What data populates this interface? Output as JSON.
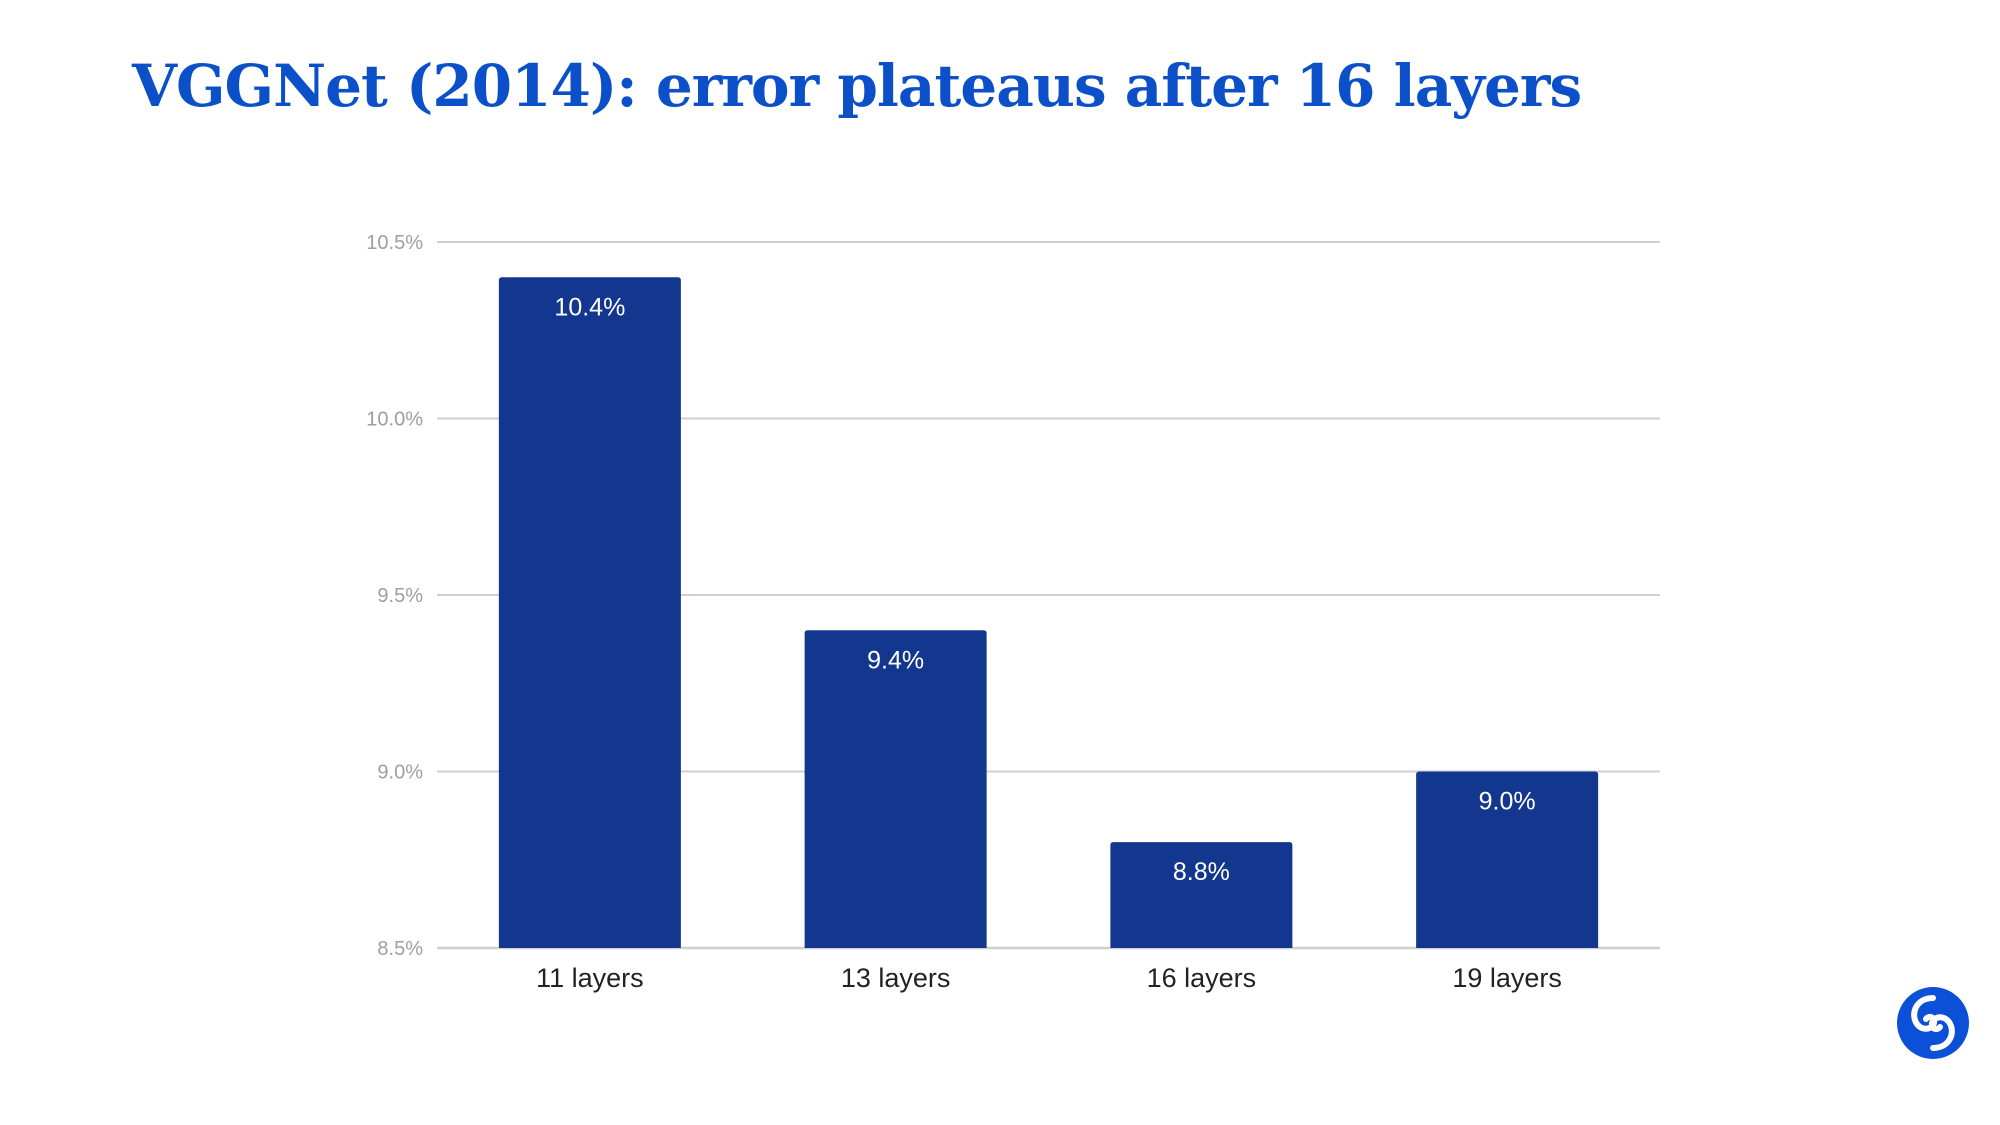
{
  "slide": {
    "title": "VGGNet (2014): error plateaus after 16 layers",
    "title_color": "#0b50c8",
    "logo_icon": "deepmind-swirl-icon",
    "logo_color": "#0b50d6"
  },
  "chart_data": {
    "type": "bar",
    "title": "",
    "xlabel": "",
    "ylabel": "",
    "categories": [
      "11 layers",
      "13 layers",
      "16 layers",
      "19 layers"
    ],
    "values": [
      10.4,
      9.4,
      8.8,
      9.0
    ],
    "data_labels": [
      "10.4%",
      "9.4%",
      "8.8%",
      "9.0%"
    ],
    "ylim": [
      8.5,
      10.5
    ],
    "yticks": [
      8.5,
      9.0,
      9.5,
      10.0,
      10.5
    ],
    "ytick_labels": [
      "8.5%",
      "9.0%",
      "9.5%",
      "10.0%",
      "10.5%"
    ],
    "grid": true,
    "legend": "none",
    "bar_color": "#13368f",
    "data_label_color": "#ffffff",
    "grid_color": "#cfcfcf",
    "tick_label_color": "#9e9e9e",
    "category_label_color": "#222222"
  }
}
